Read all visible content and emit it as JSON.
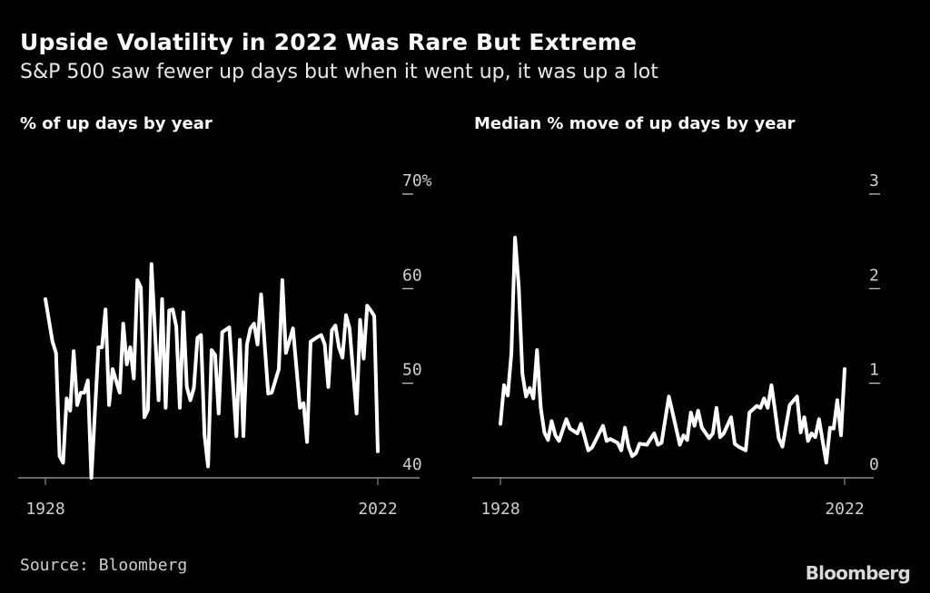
{
  "header": {
    "title": "Upside Volatility in 2022 Was Rare But Extreme",
    "subtitle": "S&P 500 saw fewer up days but when it went up, it was up a lot"
  },
  "footer": {
    "source": "Source: Bloomberg",
    "logo": "Bloomberg"
  },
  "colors": {
    "background": "#000000",
    "line": "#ffffff",
    "axis": "#8a8a8a",
    "text": "#ffffff"
  },
  "chart_data": [
    {
      "type": "line",
      "title": "% of up days by year",
      "x_tick_labels": [
        "1928",
        "2022"
      ],
      "y_tick_labels": [
        "40",
        "50",
        "60",
        "70%"
      ],
      "y_ticks": [
        40,
        50,
        60,
        70
      ],
      "xlim": [
        1928,
        2022
      ],
      "ylim": [
        40,
        70
      ],
      "grid": false,
      "series": [
        {
          "x": [
            1928,
            1930,
            1931,
            1932,
            1933,
            1934,
            1935,
            1936,
            1937,
            1938,
            1939,
            1940,
            1941,
            1943,
            1944,
            1945,
            1946,
            1947,
            1949,
            1950,
            1951,
            1952,
            1953,
            1954,
            1955,
            1956,
            1957,
            1958,
            1960,
            1961,
            1962,
            1963,
            1964,
            1965,
            1966,
            1967,
            1968,
            1969,
            1970,
            1971,
            1972,
            1973,
            1974,
            1975,
            1976,
            1977,
            1978,
            1980,
            1982,
            1983,
            1984,
            1985,
            1986,
            1987,
            1988,
            1989,
            1991,
            1992,
            1994,
            1995,
            1996,
            1998,
            2000,
            2001,
            2002,
            2003,
            2005,
            2006,
            2007,
            2008,
            2009,
            2010,
            2011,
            2012,
            2013,
            2014,
            2016,
            2017,
            2018,
            2019,
            2020,
            2021,
            2022
          ],
          "y": [
            58.9,
            54.4,
            53.2,
            42.3,
            41.6,
            48.4,
            47.1,
            53.4,
            47.7,
            49,
            49,
            50.3,
            40,
            53.8,
            53.8,
            57.8,
            47.7,
            51.5,
            49,
            56.3,
            52,
            53.8,
            50.5,
            60.9,
            60.1,
            46.4,
            47.2,
            62.6,
            48.2,
            58.9,
            47.4,
            57.7,
            57.8,
            56,
            47.4,
            57.5,
            49.6,
            48.2,
            49.5,
            54.8,
            55.1,
            44.5,
            41.2,
            53.5,
            53,
            46.8,
            55.4,
            55.9,
            44.4,
            54.6,
            44.4,
            54.1,
            55.8,
            56.3,
            54.1,
            59.4,
            48.9,
            49,
            51.5,
            60.9,
            53.2,
            55.8,
            47.4,
            47.9,
            43.8,
            54.4,
            54.9,
            55.1,
            54.1,
            49.6,
            55.6,
            56.1,
            53.8,
            52.7,
            57.2,
            55.8,
            46.8,
            56.7,
            52.6,
            58.2,
            57.7,
            57.1,
            42.8
          ]
        }
      ]
    },
    {
      "type": "line",
      "title": "Median % move of up days by year",
      "x_tick_labels": [
        "1928",
        "2022"
      ],
      "y_tick_labels": [
        "0",
        "1",
        "2",
        "3"
      ],
      "y_ticks": [
        0,
        1,
        2,
        3
      ],
      "xlim": [
        1928,
        2022
      ],
      "ylim": [
        0,
        3
      ],
      "grid": false,
      "series": [
        {
          "x": [
            1928,
            1929,
            1930,
            1931,
            1932,
            1933,
            1934,
            1935,
            1936,
            1937,
            1938,
            1939,
            1940,
            1941,
            1942,
            1943,
            1944,
            1946,
            1947,
            1949,
            1950,
            1952,
            1953,
            1956,
            1957,
            1958,
            1960,
            1961,
            1962,
            1963,
            1964,
            1965,
            1966,
            1968,
            1970,
            1971,
            1972,
            1974,
            1977,
            1978,
            1979,
            1980,
            1981,
            1982,
            1983,
            1985,
            1986,
            1987,
            1988,
            1989,
            1991,
            1992,
            1993,
            1995,
            1996,
            1998,
            1999,
            2000,
            2001,
            2002,
            2003,
            2004,
            2005,
            2007,
            2009,
            2010,
            2011,
            2012,
            2013,
            2014,
            2015,
            2017,
            2018,
            2019,
            2020,
            2021,
            2022
          ],
          "y": [
            0.57,
            0.98,
            0.87,
            1.32,
            2.54,
            2.02,
            1.1,
            0.86,
            0.95,
            0.84,
            1.35,
            0.74,
            0.48,
            0.4,
            0.6,
            0.45,
            0.39,
            0.62,
            0.52,
            0.47,
            0.57,
            0.29,
            0.32,
            0.55,
            0.39,
            0.41,
            0.37,
            0.29,
            0.53,
            0.33,
            0.23,
            0.26,
            0.36,
            0.35,
            0.47,
            0.35,
            0.37,
            0.86,
            0.35,
            0.45,
            0.4,
            0.69,
            0.55,
            0.71,
            0.53,
            0.42,
            0.47,
            0.74,
            0.43,
            0.47,
            0.64,
            0.36,
            0.33,
            0.29,
            0.69,
            0.76,
            0.74,
            0.84,
            0.74,
            0.98,
            0.71,
            0.42,
            0.33,
            0.77,
            0.86,
            0.48,
            0.64,
            0.39,
            0.47,
            0.43,
            0.62,
            0.16,
            0.53,
            0.52,
            0.82,
            0.45,
            1.15
          ]
        }
      ]
    }
  ]
}
